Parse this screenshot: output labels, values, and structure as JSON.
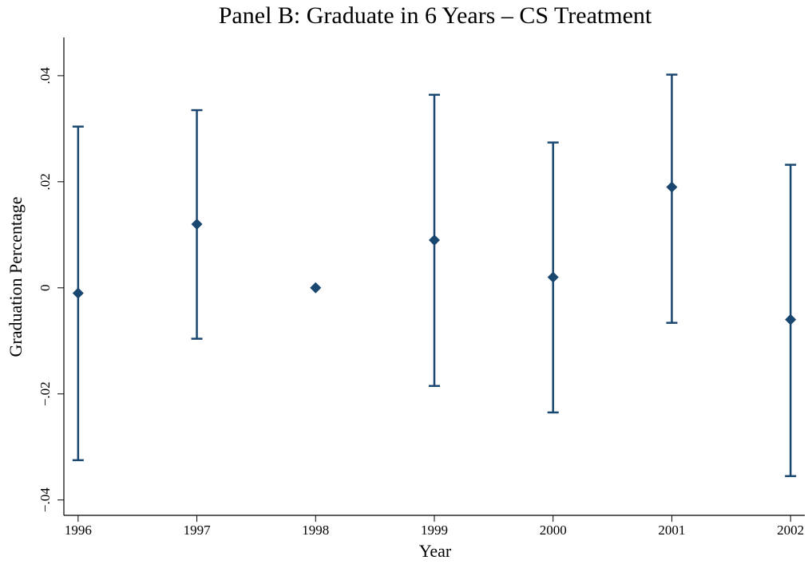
{
  "chart_data": {
    "type": "errorbar",
    "title": "Panel B: Graduate in 6 Years – CS Treatment",
    "x_label": "Year",
    "y_label": "Graduation Percentage",
    "x": [
      1996,
      1997,
      1998,
      1999,
      2000,
      2001,
      2002
    ],
    "series": [
      {
        "color": "#1a476f",
        "values": [
          -0.001,
          0.012,
          0,
          0.009,
          0.002,
          0.019,
          -0.006
        ],
        "ci_low": [
          -0.0325,
          -0.0096,
          null,
          -0.0185,
          -0.0235,
          -0.0066,
          -0.0355
        ],
        "ci_high": [
          0.0304,
          0.0335,
          null,
          0.0364,
          0.0274,
          0.0402,
          0.0232
        ]
      }
    ],
    "xlim": [
      1995.88,
      2002.12
    ],
    "xticks": [
      1996,
      1997,
      1998,
      1999,
      2000,
      2001,
      2002
    ],
    "ylim": [
      -0.0429,
      0.0472
    ],
    "yticks": [
      {
        "value": -0.04,
        "label": "−.04"
      },
      {
        "value": -0.02,
        "label": "−.02"
      },
      0,
      {
        "value": 0.02,
        "label": ".02"
      },
      {
        "value": 0.04,
        "label": ".04"
      }
    ],
    "grid": false
  }
}
